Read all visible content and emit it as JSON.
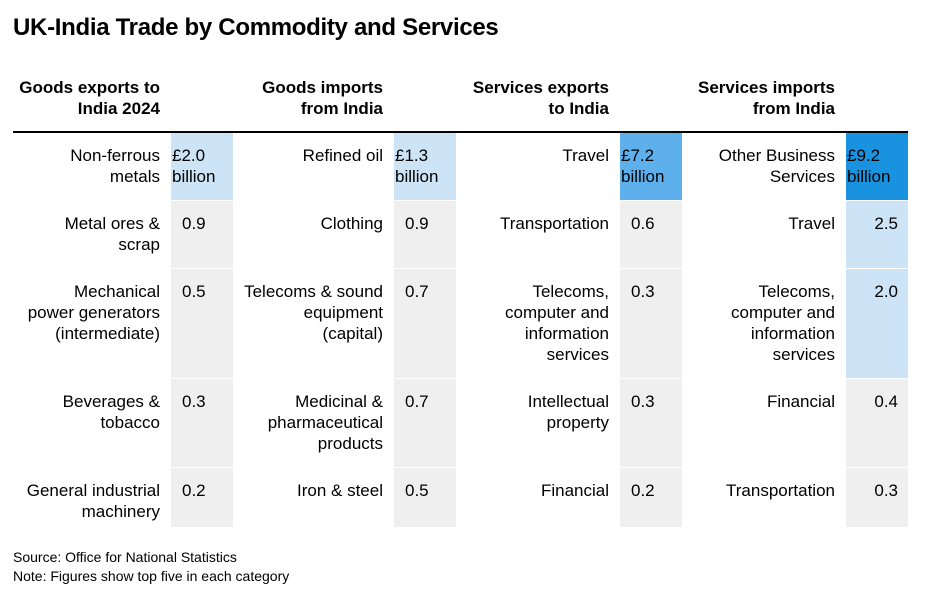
{
  "title": "UK-India Trade by Commodity and Services",
  "colors": {
    "default_cell": "#efefef",
    "light": "#cde3f6",
    "mid": "#5db0ec",
    "dark": "#1992e0"
  },
  "chart_data": {
    "type": "table",
    "title": "UK-India Trade by Commodity and Services",
    "columns": [
      {
        "header": [
          "Goods exports to",
          "India 2024"
        ],
        "rows": [
          {
            "label": [
              "Non-ferrous",
              "metals"
            ],
            "value": 2.0,
            "display": [
              "£2.0",
              "billion"
            ]
          },
          {
            "label": [
              "Metal ores &",
              "scrap"
            ],
            "value": 0.9,
            "display": [
              "0.9"
            ]
          },
          {
            "label": [
              "Mechanical",
              "power generators",
              "(intermediate)"
            ],
            "value": 0.5,
            "display": [
              "0.5"
            ]
          },
          {
            "label": [
              "Beverages &",
              "tobacco"
            ],
            "value": 0.3,
            "display": [
              "0.3"
            ]
          },
          {
            "label": [
              "General industrial",
              "machinery"
            ],
            "value": 0.2,
            "display": [
              "0.2"
            ]
          }
        ]
      },
      {
        "header": [
          "Goods imports",
          "from India"
        ],
        "rows": [
          {
            "label": [
              "Refined oil"
            ],
            "value": 1.3,
            "display": [
              "£1.3",
              "billion"
            ]
          },
          {
            "label": [
              "Clothing"
            ],
            "value": 0.9,
            "display": [
              "0.9"
            ]
          },
          {
            "label": [
              "Telecoms & sound",
              "equipment",
              "(capital)"
            ],
            "value": 0.7,
            "display": [
              "0.7"
            ]
          },
          {
            "label": [
              "Medicinal &",
              "pharmaceutical",
              "products"
            ],
            "value": 0.7,
            "display": [
              "0.7"
            ]
          },
          {
            "label": [
              "Iron & steel"
            ],
            "value": 0.5,
            "display": [
              "0.5"
            ]
          }
        ]
      },
      {
        "header": [
          "Services exports",
          "to India"
        ],
        "rows": [
          {
            "label": [
              "Travel"
            ],
            "value": 7.2,
            "display": [
              "£7.2",
              "billion"
            ]
          },
          {
            "label": [
              "Transportation"
            ],
            "value": 0.6,
            "display": [
              "0.6"
            ]
          },
          {
            "label": [
              "Telecoms,",
              "computer and",
              "information",
              "services"
            ],
            "value": 0.3,
            "display": [
              "0.3"
            ]
          },
          {
            "label": [
              "Intellectual",
              "property"
            ],
            "value": 0.3,
            "display": [
              "0.3"
            ]
          },
          {
            "label": [
              "Financial"
            ],
            "value": 0.2,
            "display": [
              "0.2"
            ]
          }
        ]
      },
      {
        "header": [
          "Services imports",
          "from India"
        ],
        "rows": [
          {
            "label": [
              "Other Business",
              "Services"
            ],
            "value": 9.2,
            "display": [
              "£9.2",
              "billion"
            ]
          },
          {
            "label": [
              "Travel"
            ],
            "value": 2.5,
            "display": [
              "2.5"
            ]
          },
          {
            "label": [
              "Telecoms,",
              "computer and",
              "information",
              "services"
            ],
            "value": 2.0,
            "display": [
              "2.0"
            ]
          },
          {
            "label": [
              "Financial"
            ],
            "value": 0.4,
            "display": [
              "0.4"
            ]
          },
          {
            "label": [
              "Transportation"
            ],
            "value": 0.3,
            "display": [
              "0.3"
            ]
          }
        ]
      }
    ]
  },
  "footer": {
    "source": "Source: Office for National Statistics",
    "note": "Note: Figures show top five in each category"
  }
}
